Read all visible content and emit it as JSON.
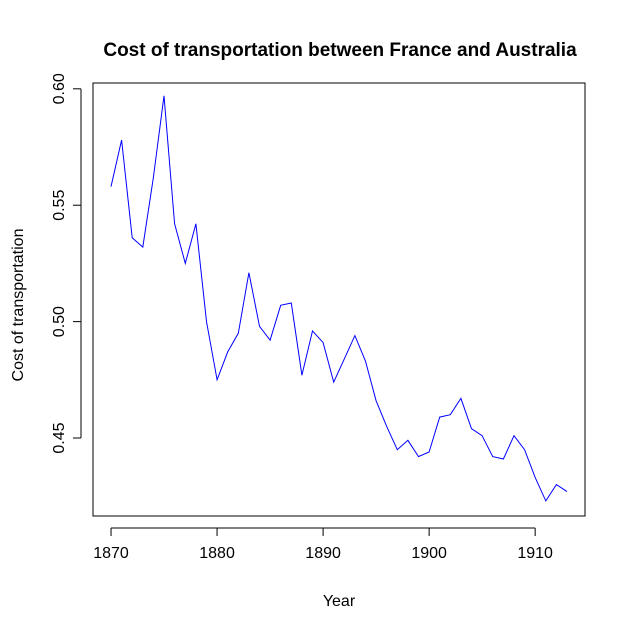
{
  "chart_data": {
    "type": "line",
    "title": "Cost of transportation between France and Australia",
    "xlabel": "Year",
    "ylabel": "Cost of transportation",
    "xlim": [
      1868.3,
      1914.7
    ],
    "ylim": [
      0.4165,
      0.6025
    ],
    "x_ticks": [
      "1870",
      "1880",
      "1890",
      "1900",
      "1910"
    ],
    "y_ticks": [
      "0.45",
      "0.50",
      "0.55",
      "0.60"
    ],
    "grid": false,
    "legend": "none",
    "series": [
      {
        "color": "#0000ff",
        "x": [
          1870,
          1871,
          1872,
          1873,
          1874,
          1875,
          1876,
          1877,
          1878,
          1879,
          1880,
          1881,
          1882,
          1883,
          1884,
          1885,
          1886,
          1887,
          1888,
          1889,
          1890,
          1891,
          1892,
          1893,
          1894,
          1895,
          1896,
          1897,
          1898,
          1899,
          1900,
          1901,
          1902,
          1903,
          1904,
          1905,
          1906,
          1907,
          1908,
          1909,
          1910,
          1911,
          1912,
          1913
        ],
        "values": [
          0.558,
          0.578,
          0.536,
          0.532,
          0.562,
          0.597,
          0.542,
          0.525,
          0.542,
          0.5,
          0.475,
          0.487,
          0.495,
          0.521,
          0.498,
          0.492,
          0.507,
          0.508,
          0.477,
          0.496,
          0.491,
          0.474,
          0.484,
          0.494,
          0.483,
          0.466,
          0.455,
          0.445,
          0.449,
          0.442,
          0.444,
          0.459,
          0.46,
          0.467,
          0.454,
          0.451,
          0.442,
          0.441,
          0.451,
          0.445,
          0.433,
          0.423,
          0.43,
          0.427
        ]
      }
    ]
  }
}
